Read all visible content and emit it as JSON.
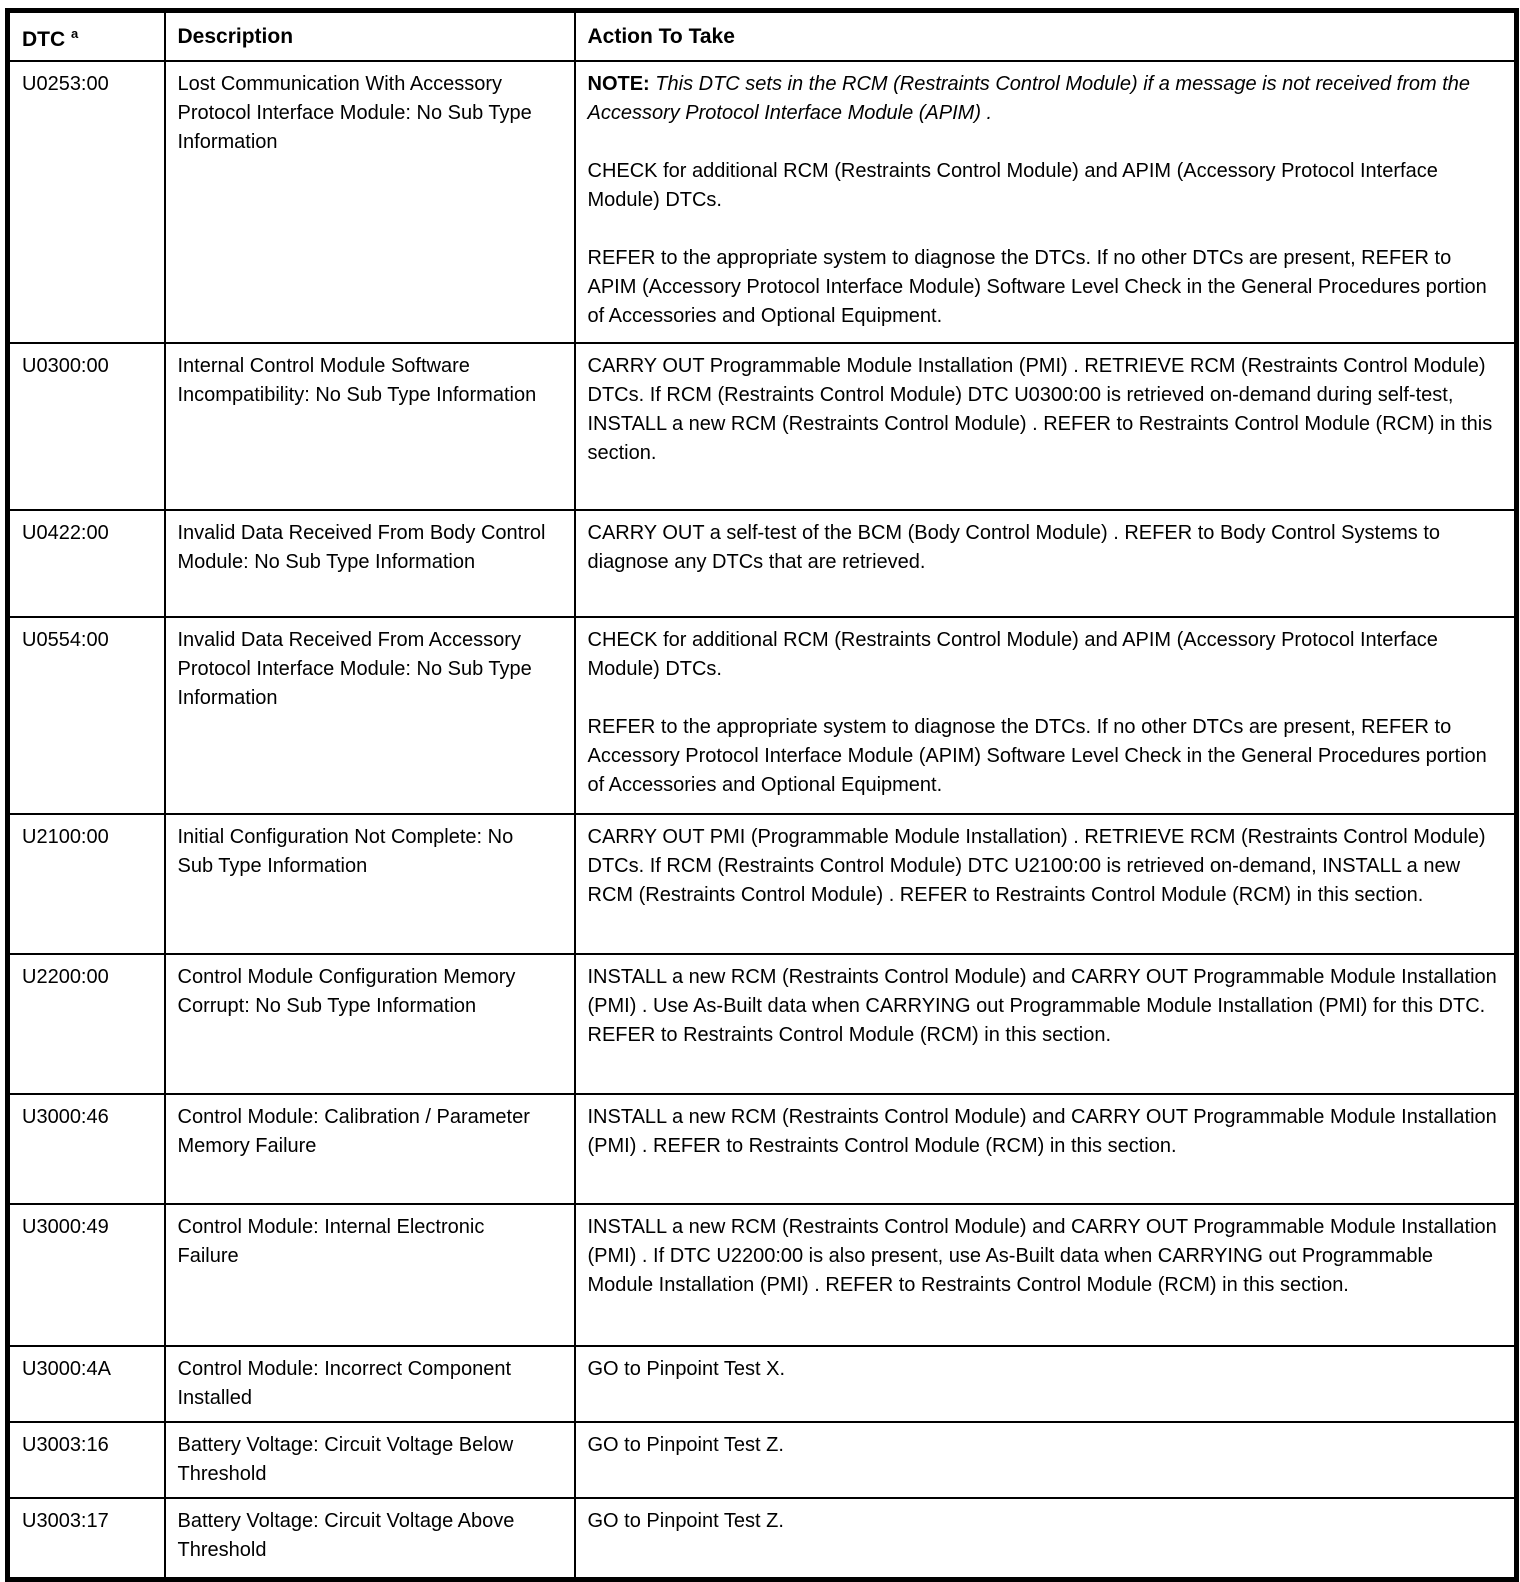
{
  "colors": {
    "border": "#000000",
    "text": "#000000",
    "background": "#ffffff"
  },
  "table": {
    "header": {
      "dtc": "DTC",
      "dtc_superscript": "a",
      "description": "Description",
      "action": "Action To Take"
    },
    "rows": [
      {
        "dtc": "U0253:00",
        "description": "Lost Communication With Accessory Protocol Interface Module: No Sub Type Information",
        "note_label": "NOTE:",
        "note_body": "This DTC sets in the RCM (Restraints Control Module) if a message is not received from the Accessory Protocol Interface Module (APIM) .",
        "paragraphs": [
          "CHECK for additional RCM (Restraints Control Module) and APIM (Accessory Protocol Interface Module) DTCs.",
          "REFER to the appropriate system to diagnose the DTCs. If no other DTCs are present, REFER to APIM (Accessory Protocol Interface Module) Software Level Check in the General Procedures portion of  Accessories and Optional Equipment."
        ]
      },
      {
        "dtc": "U0300:00",
        "description": "Internal Control Module Software Incompatibility: No Sub Type Information",
        "paragraphs": [
          "CARRY OUT Programmable Module Installation (PMI) . RETRIEVE RCM (Restraints Control Module) DTCs. If RCM (Restraints Control Module) DTC U0300:00 is retrieved on-demand during self-test, INSTALL a new RCM (Restraints Control Module) . REFER to Restraints Control Module (RCM) in this section."
        ]
      },
      {
        "dtc": "U0422:00",
        "description": "Invalid Data Received From Body Control Module: No Sub Type Information",
        "paragraphs": [
          "CARRY OUT a self-test of the BCM (Body Control Module) . REFER to Body Control Systems to diagnose any DTCs that are retrieved."
        ]
      },
      {
        "dtc": "U0554:00",
        "description": "Invalid Data Received From Accessory Protocol Interface Module: No Sub Type Information",
        "paragraphs": [
          "CHECK for additional RCM (Restraints Control Module) and APIM (Accessory Protocol Interface Module) DTCs.",
          "REFER to the appropriate system to diagnose the DTCs. If no other DTCs are present, REFER to Accessory Protocol Interface Module (APIM) Software Level Check in the General Procedures portion of  Accessories and Optional Equipment."
        ]
      },
      {
        "dtc": "U2100:00",
        "description": "Initial Configuration Not Complete: No Sub Type Information",
        "paragraphs": [
          "CARRY OUT PMI (Programmable Module Installation) . RETRIEVE RCM (Restraints Control Module) DTCs. If RCM (Restraints Control Module) DTC U2100:00 is retrieved on-demand, INSTALL a new RCM (Restraints Control Module) . REFER to Restraints Control Module (RCM) in this section."
        ]
      },
      {
        "dtc": "U2200:00",
        "description": "Control Module Configuration Memory Corrupt: No Sub Type Information",
        "paragraphs": [
          "INSTALL a new RCM (Restraints Control Module) and CARRY OUT Programmable Module Installation (PMI) . Use As-Built data when CARRYING out Programmable Module Installation (PMI) for this DTC. REFER to Restraints Control Module (RCM) in this section."
        ]
      },
      {
        "dtc": "U3000:46",
        "description": "Control Module: Calibration / Parameter Memory Failure",
        "paragraphs": [
          "INSTALL a new RCM (Restraints Control Module) and CARRY OUT Programmable Module Installation (PMI) . REFER to Restraints Control Module (RCM) in this section."
        ]
      },
      {
        "dtc": "U3000:49",
        "description": "Control Module: Internal Electronic Failure",
        "paragraphs": [
          "INSTALL a new RCM (Restraints Control Module) and CARRY OUT Programmable Module Installation (PMI) . If DTC U2200:00 is also present, use As-Built data when CARRYING out Programmable Module Installation (PMI) . REFER to Restraints Control Module (RCM) in this section."
        ]
      },
      {
        "dtc": "U3000:4A",
        "description": "Control Module: Incorrect Component Installed",
        "paragraphs": [
          "GO to Pinpoint Test X."
        ]
      },
      {
        "dtc": "U3003:16",
        "description": "Battery Voltage: Circuit Voltage Below Threshold",
        "paragraphs": [
          "GO to Pinpoint Test Z."
        ]
      },
      {
        "dtc": "U3003:17",
        "description": "Battery Voltage: Circuit Voltage Above Threshold",
        "paragraphs": [
          "GO to Pinpoint Test Z."
        ]
      }
    ]
  }
}
